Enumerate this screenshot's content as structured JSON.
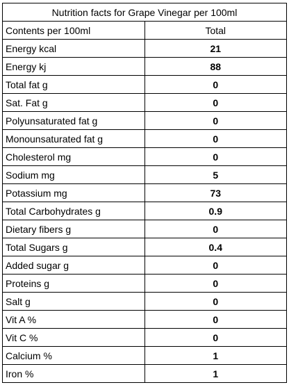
{
  "table": {
    "title": "Nutrition facts for Grape Vinegar per 100ml",
    "header": [
      "Contents per 100ml",
      "Total"
    ],
    "rows": [
      [
        "Energy kcal",
        "21"
      ],
      [
        "Energy kj",
        "88"
      ],
      [
        "Total fat g",
        "0"
      ],
      [
        "Sat. Fat g",
        "0"
      ],
      [
        "Polyunsaturated fat g",
        "0"
      ],
      [
        "Monounsaturated fat g",
        "0"
      ],
      [
        "Cholesterol mg",
        "0"
      ],
      [
        "Sodium mg",
        "5"
      ],
      [
        "Potassium mg",
        "73"
      ],
      [
        "Total Carbohydrates g",
        "0.9"
      ],
      [
        "Dietary fibers g",
        "0"
      ],
      [
        "Total Sugars g",
        "0.4"
      ],
      [
        "Added sugar g",
        "0"
      ],
      [
        "Proteins g",
        "0"
      ],
      [
        "Salt g",
        "0"
      ],
      [
        "Vit A %",
        "0"
      ],
      [
        "Vit C %",
        "0"
      ],
      [
        "Calcium %",
        "1"
      ],
      [
        "Iron %",
        "1"
      ]
    ]
  }
}
